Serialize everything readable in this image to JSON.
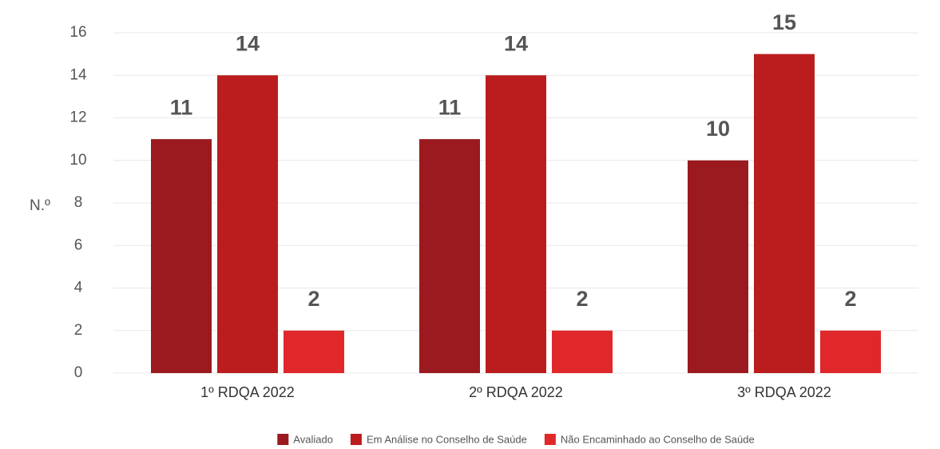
{
  "chart_data": {
    "type": "bar",
    "y_label": "N.º",
    "categories": [
      "1º RDQA 2022",
      "2º RDQA 2022",
      "3º RDQA 2022"
    ],
    "series": [
      {
        "name": "Avaliado",
        "color": "#9b1a1f",
        "values": [
          11,
          11,
          10
        ]
      },
      {
        "name": "Em Análise no Conselho de Saúde",
        "color": "#bb1d1e",
        "values": [
          14,
          14,
          15
        ]
      },
      {
        "name": "Não Encaminhado ao Conselho de Saúde",
        "color": "#e0282a",
        "values": [
          2,
          2,
          2
        ]
      }
    ],
    "ylim": [
      0,
      16
    ],
    "yticks": [
      0,
      2,
      4,
      6,
      8,
      10,
      12,
      14,
      16
    ],
    "grid": true,
    "legend": "bottom"
  }
}
